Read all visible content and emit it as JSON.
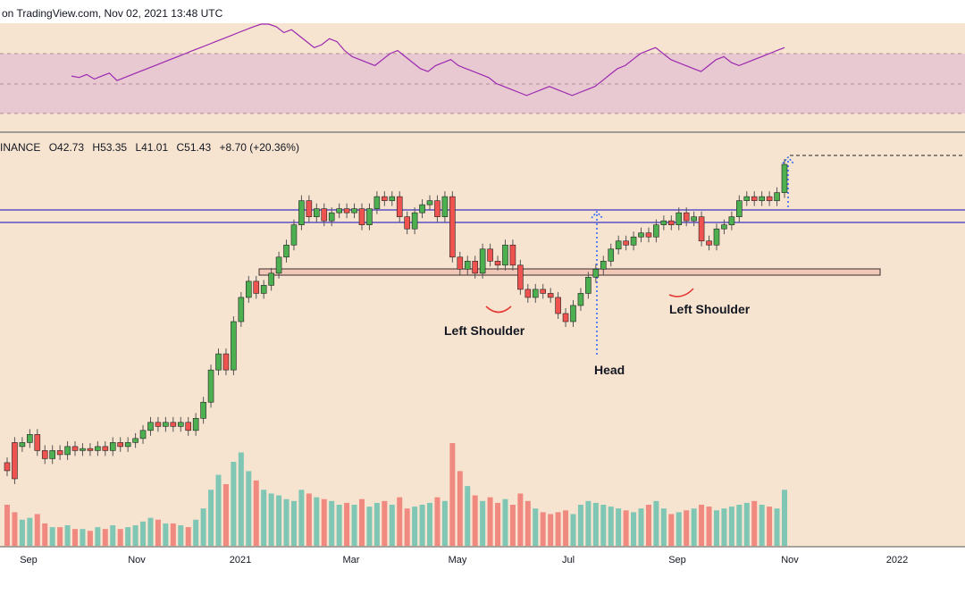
{
  "header": {
    "text": "on TradingView.com, Nov 02, 2021 13:48 UTC"
  },
  "ohlc": {
    "symbol_fragment": "INANCE",
    "open": "O42.73",
    "high": "H53.35",
    "low": "L41.01",
    "close": "C51.43",
    "change": "+8.70 (+20.36%)"
  },
  "colors": {
    "background": "#f7e4d0",
    "rsi_band": "#e8c9d2",
    "rsi_line": "#9c27b0",
    "up": "#26a69a",
    "down": "#ef5350",
    "up_fill": "#4caf50",
    "resistance_line": "#5b4fc4",
    "support_zone_border": "#3a2a2a",
    "support_zone_fill": "#f2c9b8",
    "target_arrow": "#2962ff",
    "curve_marker": "#e53935"
  },
  "chart_data": {
    "type": "candlestick",
    "title": "",
    "xlabel": "",
    "ylabel": "",
    "x_ticks": [
      "Sep",
      "Nov",
      "2021",
      "Mar",
      "May",
      "Jul",
      "Sep",
      "Nov",
      "2022"
    ],
    "candles": [
      [
        1,
        5,
        3
      ],
      [
        2,
        10,
        1
      ],
      [
        3,
        9,
        10
      ],
      [
        4,
        10,
        12
      ],
      [
        5,
        12,
        8
      ],
      [
        6,
        8,
        6
      ],
      [
        7,
        6,
        8
      ],
      [
        8,
        8,
        7
      ],
      [
        9,
        7,
        9
      ],
      [
        10,
        9,
        8
      ],
      [
        11,
        8,
        8.5
      ],
      [
        12,
        8.5,
        8
      ],
      [
        13,
        8,
        9
      ],
      [
        14,
        9,
        8
      ],
      [
        15,
        8,
        10
      ],
      [
        16,
        10,
        9
      ],
      [
        17,
        9,
        10
      ],
      [
        18,
        10,
        11
      ],
      [
        19,
        11,
        13
      ],
      [
        20,
        13,
        15
      ],
      [
        21,
        15,
        14
      ],
      [
        22,
        14,
        15
      ],
      [
        23,
        15,
        14
      ],
      [
        24,
        14,
        15
      ],
      [
        25,
        15,
        13
      ],
      [
        26,
        13,
        16
      ],
      [
        27,
        16,
        20
      ],
      [
        28,
        20,
        28
      ],
      [
        29,
        28,
        32
      ],
      [
        30,
        32,
        28
      ],
      [
        31,
        28,
        40
      ],
      [
        32,
        40,
        46
      ],
      [
        33,
        46,
        50
      ],
      [
        34,
        50,
        47
      ],
      [
        35,
        47,
        49
      ],
      [
        36,
        49,
        52
      ],
      [
        37,
        52,
        56
      ],
      [
        38,
        56,
        59
      ],
      [
        39,
        59,
        64
      ],
      [
        40,
        64,
        70
      ],
      [
        41,
        70,
        66
      ],
      [
        42,
        66,
        68
      ],
      [
        43,
        68,
        65
      ],
      [
        44,
        65,
        67
      ],
      [
        45,
        67,
        68
      ],
      [
        46,
        68,
        67
      ],
      [
        47,
        67,
        68
      ],
      [
        48,
        68,
        64
      ],
      [
        49,
        64,
        68
      ],
      [
        50,
        68,
        71
      ],
      [
        51,
        71,
        70
      ],
      [
        52,
        70,
        71
      ],
      [
        53,
        71,
        66
      ],
      [
        54,
        66,
        63
      ],
      [
        55,
        63,
        67
      ],
      [
        56,
        67,
        69
      ],
      [
        57,
        69,
        70
      ],
      [
        58,
        70,
        66
      ],
      [
        59,
        66,
        71
      ],
      [
        60,
        71,
        56
      ],
      [
        61,
        56,
        53
      ],
      [
        62,
        53,
        55
      ],
      [
        63,
        55,
        52
      ],
      [
        64,
        52,
        58
      ],
      [
        65,
        58,
        55
      ],
      [
        66,
        55,
        54
      ],
      [
        67,
        54,
        59
      ],
      [
        68,
        59,
        54
      ],
      [
        69,
        54,
        48
      ],
      [
        70,
        48,
        46
      ],
      [
        71,
        46,
        48
      ],
      [
        72,
        48,
        47
      ],
      [
        73,
        47,
        46
      ],
      [
        74,
        46,
        42
      ],
      [
        75,
        42,
        40
      ],
      [
        76,
        40,
        44
      ],
      [
        77,
        44,
        47
      ],
      [
        78,
        47,
        51
      ],
      [
        79,
        51,
        53
      ],
      [
        80,
        53,
        55
      ],
      [
        81,
        55,
        58
      ],
      [
        82,
        58,
        60
      ],
      [
        83,
        60,
        59
      ],
      [
        84,
        59,
        61
      ],
      [
        85,
        61,
        62
      ],
      [
        86,
        62,
        61
      ],
      [
        87,
        61,
        64
      ],
      [
        88,
        64,
        65
      ],
      [
        89,
        65,
        64
      ],
      [
        90,
        64,
        67
      ],
      [
        91,
        67,
        65
      ],
      [
        92,
        65,
        66
      ],
      [
        93,
        66,
        60
      ],
      [
        94,
        60,
        59
      ],
      [
        95,
        59,
        63
      ],
      [
        96,
        63,
        64
      ],
      [
        97,
        64,
        66
      ],
      [
        98,
        66,
        70
      ],
      [
        99,
        70,
        71
      ],
      [
        100,
        71,
        70
      ],
      [
        101,
        70,
        71
      ],
      [
        102,
        71,
        70
      ],
      [
        103,
        70,
        72
      ],
      [
        104,
        72,
        79
      ]
    ],
    "volume": [
      22,
      18,
      14,
      15,
      17,
      12,
      10,
      10,
      11,
      9,
      9,
      8,
      10,
      9,
      11,
      9,
      10,
      11,
      13,
      15,
      14,
      12,
      12,
      11,
      10,
      14,
      20,
      30,
      38,
      33,
      45,
      50,
      40,
      35,
      30,
      28,
      27,
      25,
      24,
      30,
      28,
      26,
      25,
      24,
      22,
      23,
      22,
      25,
      21,
      23,
      24,
      22,
      26,
      20,
      21,
      22,
      23,
      26,
      24,
      55,
      40,
      32,
      27,
      24,
      26,
      23,
      25,
      22,
      28,
      24,
      20,
      18,
      17,
      18,
      19,
      17,
      22,
      24,
      23,
      22,
      21,
      20,
      19,
      18,
      20,
      22,
      24,
      20,
      17,
      18,
      19,
      20,
      22,
      21,
      19,
      20,
      21,
      22,
      23,
      24,
      22,
      21,
      20,
      30
    ],
    "rsi": [
      55,
      54,
      56,
      53,
      55,
      57,
      52,
      54,
      56,
      58,
      60,
      62,
      64,
      66,
      68,
      70,
      72,
      74,
      76,
      78,
      80,
      82,
      84,
      86,
      88,
      90,
      92,
      88,
      84,
      86,
      82,
      78,
      74,
      76,
      80,
      78,
      72,
      68,
      66,
      64,
      62,
      66,
      70,
      72,
      68,
      64,
      60,
      58,
      62,
      64,
      66,
      62,
      60,
      58,
      56,
      54,
      50,
      48,
      46,
      44,
      42,
      44,
      46,
      48,
      46,
      44,
      42,
      44,
      46,
      48,
      52,
      56,
      60,
      62,
      66,
      70,
      72,
      74,
      70,
      66,
      64,
      62,
      60,
      58,
      62,
      66,
      68,
      64,
      62,
      64,
      66,
      68,
      70,
      72,
      74
    ],
    "annotations": {
      "left_shoulder_1": "Left Shoulder",
      "head": "Head",
      "left_shoulder_2": "Left Shoulder"
    }
  }
}
